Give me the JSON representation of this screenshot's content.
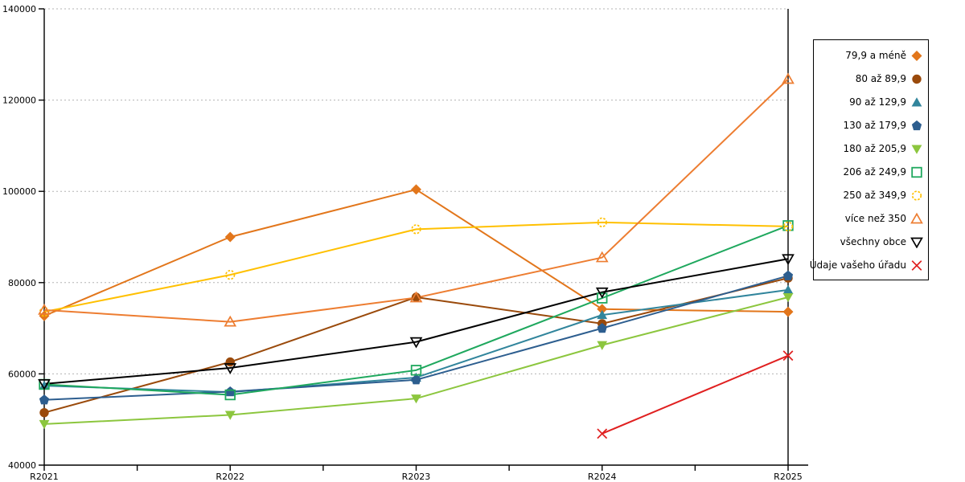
{
  "chart_data": {
    "type": "line",
    "title": "",
    "xlabel": "",
    "ylabel": "",
    "categories": [
      "R2021",
      "R2022",
      "R2023",
      "R2024",
      "R2025"
    ],
    "ylim": [
      40000,
      140000
    ],
    "yticks": [
      40000,
      60000,
      80000,
      100000,
      120000,
      140000
    ],
    "grid": "horizontal dotted lines at 60000,80000,100000,120000,140000",
    "legend_position": "right",
    "series": [
      {
        "name": "79,9 a méně",
        "marker": "diamond",
        "filled": true,
        "color": "#E2761B",
        "values": [
          72700,
          90000,
          100400,
          74200,
          73600
        ]
      },
      {
        "name": "80 až 89,9",
        "marker": "circle",
        "filled": true,
        "color": "#9A4A0B",
        "values": [
          51500,
          62600,
          76800,
          71000,
          81000
        ]
      },
      {
        "name": "90 až 129,9",
        "marker": "triangle-up",
        "filled": true,
        "color": "#31859C",
        "values": [
          57400,
          56000,
          59200,
          72900,
          78400
        ]
      },
      {
        "name": "130 až 179,9",
        "marker": "pentagon",
        "filled": true,
        "color": "#2D5E8F",
        "values": [
          54300,
          56100,
          58700,
          70000,
          81500
        ]
      },
      {
        "name": "180 až 205,9",
        "marker": "triangle-down",
        "filled": true,
        "color": "#8CC63E",
        "values": [
          49000,
          51000,
          54600,
          66300,
          76800
        ]
      },
      {
        "name": "206 až 249,9",
        "marker": "square",
        "filled": false,
        "color": "#1FA85E",
        "values": [
          57700,
          55400,
          60800,
          76600,
          92500
        ]
      },
      {
        "name": "250 až 349,9",
        "marker": "circle-dashed",
        "filled": false,
        "color": "#FFC000",
        "values": [
          73600,
          81700,
          91700,
          93200,
          92300
        ]
      },
      {
        "name": "více než 350",
        "marker": "triangle-up",
        "filled": false,
        "color": "#ED7D31",
        "values": [
          74000,
          71400,
          76700,
          85500,
          124600
        ]
      },
      {
        "name": "všechny obce",
        "marker": "triangle-down",
        "filled": false,
        "color": "#000000",
        "values": [
          57800,
          61300,
          67000,
          77900,
          85200
        ]
      },
      {
        "name": "Údaje vašeho úřadu",
        "marker": "x",
        "filled": false,
        "color": "#E02020",
        "values": [
          null,
          null,
          null,
          46900,
          64000
        ]
      }
    ]
  },
  "colors": {
    "grid": "#b3b3b3",
    "axis": "#000000",
    "background": "#ffffff"
  }
}
